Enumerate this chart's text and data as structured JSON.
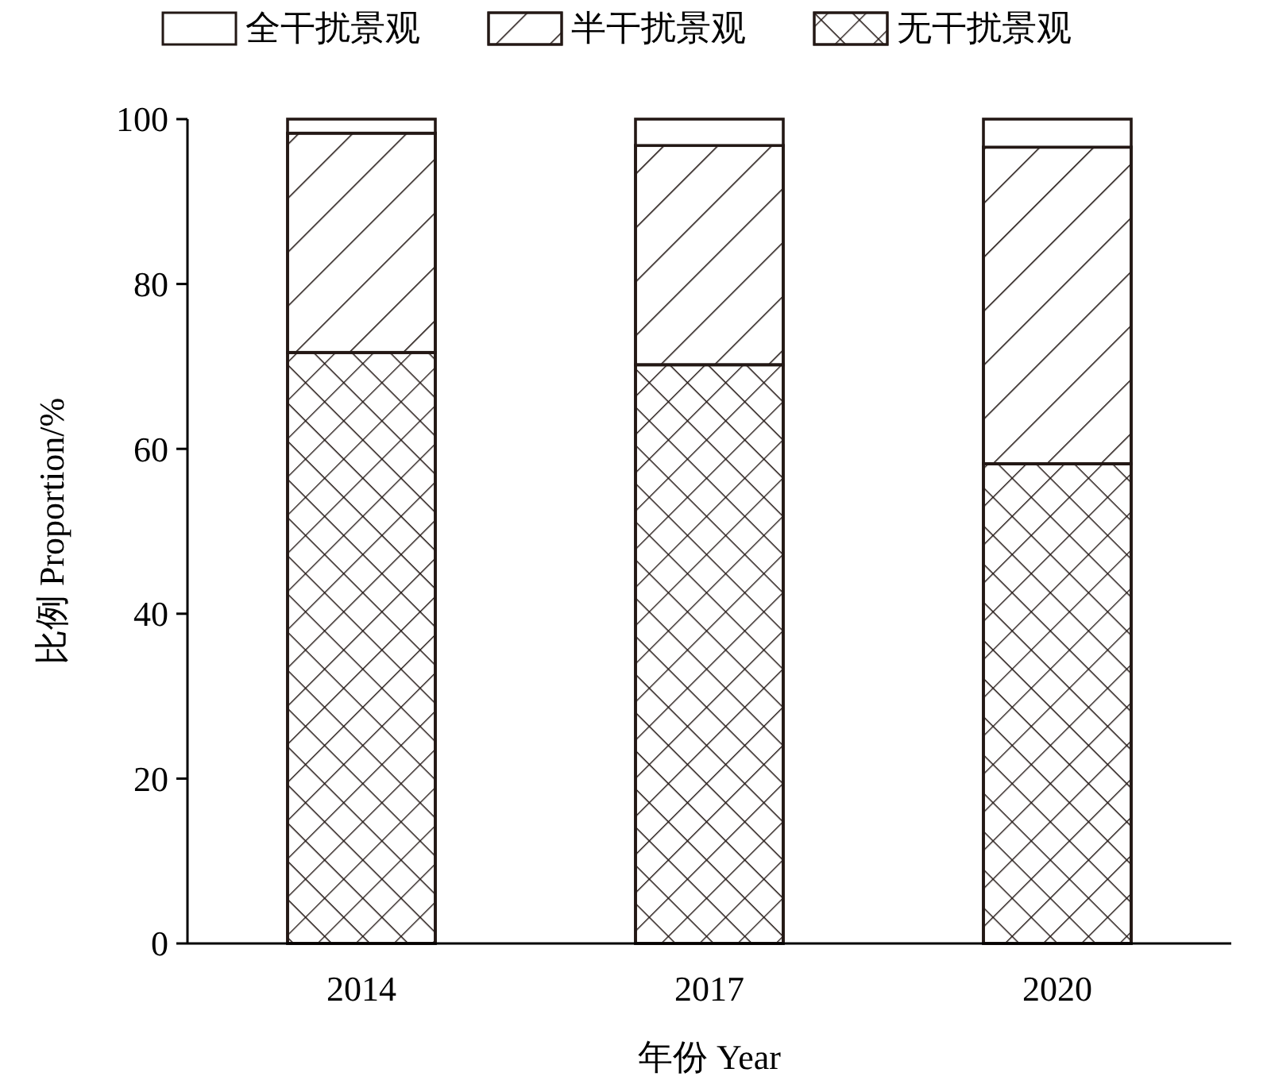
{
  "chart_data": {
    "type": "bar",
    "stacked": true,
    "xlabel": "年份 Year",
    "ylabel": "比例 Proportion/%",
    "categories": [
      "2014",
      "2017",
      "2020"
    ],
    "series": [
      {
        "name": "无干扰景观",
        "color": "#ffffff",
        "values": [
          71.7,
          70.2,
          58.2
        ]
      },
      {
        "name": "半干扰景观",
        "color": "#ffffff",
        "values": [
          26.6,
          26.6,
          38.4
        ]
      },
      {
        "name": "全干扰景观",
        "color": "#ffffff",
        "values": [
          1.7,
          3.2,
          3.4
        ]
      }
    ],
    "ylim": [
      0,
      100
    ],
    "yticks": [
      0,
      20,
      40,
      60,
      80,
      100
    ],
    "grid": false,
    "legend": "top"
  }
}
